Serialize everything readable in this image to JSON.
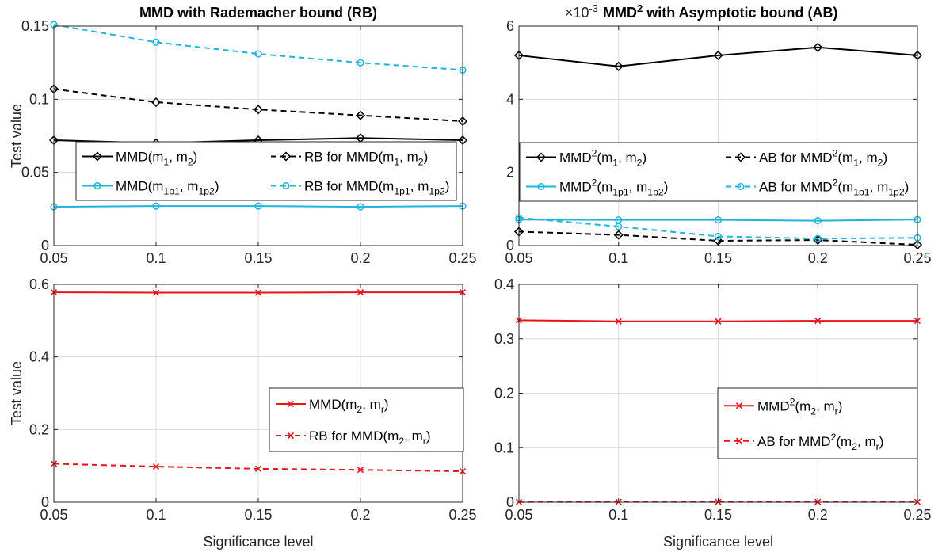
{
  "chart_data": [
    {
      "type": "line",
      "title": "MMD with Rademacher bound (RB)",
      "xlabel": "",
      "ylabel": "Test value",
      "x": [
        0.05,
        0.1,
        0.15,
        0.2,
        0.25
      ],
      "xticks": [
        "0.05",
        "0.1",
        "0.15",
        "0.2",
        "0.25"
      ],
      "xlim": [
        0.05,
        0.25
      ],
      "ylim": [
        0,
        0.15
      ],
      "yticks": [
        "0",
        "0.05",
        "0.1",
        "0.15"
      ],
      "grid": true,
      "legend_position": "middle, two columns",
      "series": [
        {
          "name": "MMD(m1, m2)",
          "name_parts": [
            [
              "MMD(m",
              ""
            ],
            [
              "1",
              "sub"
            ],
            [
              ", m",
              ""
            ],
            [
              "2",
              "sub"
            ],
            [
              ")",
              ""
            ]
          ],
          "color": "#000000",
          "dash": "solid",
          "marker": "diamond",
          "values": [
            0.072,
            0.07,
            0.072,
            0.0735,
            0.072
          ]
        },
        {
          "name": "RB for MMD(m1, m2)",
          "name_parts": [
            [
              "RB for MMD(m",
              ""
            ],
            [
              "1",
              "sub"
            ],
            [
              ", m",
              ""
            ],
            [
              "2",
              "sub"
            ],
            [
              ")",
              ""
            ]
          ],
          "color": "#000000",
          "dash": "dashed",
          "marker": "diamond",
          "values": [
            0.107,
            0.098,
            0.093,
            0.089,
            0.085
          ]
        },
        {
          "name": "MMD(m1p1, m1p2)",
          "name_parts": [
            [
              "MMD(m",
              ""
            ],
            [
              "1p1",
              "sub"
            ],
            [
              ", m",
              ""
            ],
            [
              "1p2",
              "sub"
            ],
            [
              ")",
              ""
            ]
          ],
          "color": "#1eb4dc",
          "dash": "solid",
          "marker": "circle",
          "values": [
            0.0265,
            0.027,
            0.027,
            0.0265,
            0.027
          ]
        },
        {
          "name": "RB for MMD(m1p1, m1p2)",
          "name_parts": [
            [
              "RB for MMD(m",
              ""
            ],
            [
              "1p1",
              "sub"
            ],
            [
              ", m",
              ""
            ],
            [
              "1p2",
              "sub"
            ],
            [
              ")",
              ""
            ]
          ],
          "color": "#1eb4dc",
          "dash": "dashed",
          "marker": "circle",
          "values": [
            0.151,
            0.139,
            0.131,
            0.125,
            0.12
          ]
        }
      ]
    },
    {
      "type": "line",
      "title": "MMD2 with Asymptotic bound (AB)",
      "title_parts": [
        [
          "MMD",
          ""
        ],
        [
          "2",
          "sup"
        ],
        [
          " with Asymptotic bound (AB)",
          ""
        ]
      ],
      "exponent_parts": [
        [
          "×10",
          ""
        ],
        [
          "-3",
          "sup"
        ]
      ],
      "xlabel": "",
      "ylabel": "",
      "x": [
        0.05,
        0.1,
        0.15,
        0.2,
        0.25
      ],
      "xticks": [
        "0.05",
        "0.1",
        "0.15",
        "0.2",
        "0.25"
      ],
      "xlim": [
        0.05,
        0.25
      ],
      "ylim": [
        0,
        6
      ],
      "yticks": [
        "0",
        "2",
        "4",
        "6"
      ],
      "y_scale_note": "values in units of 1e-3",
      "grid": true,
      "legend_position": "middle, two columns",
      "series": [
        {
          "name": "MMD2(m1, m2)",
          "name_parts": [
            [
              "MMD",
              ""
            ],
            [
              "2",
              "sup"
            ],
            [
              "(m",
              ""
            ],
            [
              "1",
              "sub"
            ],
            [
              ", m",
              ""
            ],
            [
              "2",
              "sub"
            ],
            [
              ")",
              ""
            ]
          ],
          "color": "#000000",
          "dash": "solid",
          "marker": "diamond",
          "values": [
            5.2,
            4.9,
            5.2,
            5.42,
            5.2
          ]
        },
        {
          "name": "AB for MMD2(m1, m2)",
          "name_parts": [
            [
              "AB for MMD",
              ""
            ],
            [
              "2",
              "sup"
            ],
            [
              "(m",
              ""
            ],
            [
              "1",
              "sub"
            ],
            [
              ", m",
              ""
            ],
            [
              "2",
              "sub"
            ],
            [
              ")",
              ""
            ]
          ],
          "color": "#000000",
          "dash": "dashed",
          "marker": "diamond",
          "values": [
            0.38,
            0.29,
            0.13,
            0.15,
            0.02
          ]
        },
        {
          "name": "MMD2(m1p1, m1p2)",
          "name_parts": [
            [
              "MMD",
              ""
            ],
            [
              "2",
              "sup"
            ],
            [
              "(m",
              ""
            ],
            [
              "1p1",
              "sub"
            ],
            [
              ", m",
              ""
            ],
            [
              "1p2",
              "sub"
            ],
            [
              ")",
              ""
            ]
          ],
          "color": "#1eb4dc",
          "dash": "solid",
          "marker": "circle",
          "values": [
            0.71,
            0.7,
            0.7,
            0.68,
            0.71
          ]
        },
        {
          "name": "AB for MMD2(m1p1, m1p2)",
          "name_parts": [
            [
              "AB for MMD",
              ""
            ],
            [
              "2",
              "sup"
            ],
            [
              "(m",
              ""
            ],
            [
              "1p1",
              "sub"
            ],
            [
              ", m",
              ""
            ],
            [
              "1p2",
              "sub"
            ],
            [
              ")",
              ""
            ]
          ],
          "color": "#1eb4dc",
          "dash": "dashed",
          "marker": "circle",
          "values": [
            0.76,
            0.52,
            0.25,
            0.19,
            0.21
          ]
        }
      ]
    },
    {
      "type": "line",
      "title": "",
      "xlabel": "Significance level",
      "ylabel": "Test value",
      "x": [
        0.05,
        0.1,
        0.15,
        0.2,
        0.25
      ],
      "xticks": [
        "0.05",
        "0.1",
        "0.15",
        "0.2",
        "0.25"
      ],
      "xlim": [
        0.05,
        0.25
      ],
      "ylim": [
        0,
        0.6
      ],
      "yticks": [
        "0",
        "0.2",
        "0.4",
        "0.6"
      ],
      "grid": true,
      "legend_position": "right",
      "series": [
        {
          "name": "MMD(m2, mr)",
          "name_parts": [
            [
              "MMD(m",
              ""
            ],
            [
              "2",
              "sub"
            ],
            [
              ", m",
              ""
            ],
            [
              "r",
              "sub"
            ],
            [
              ")",
              ""
            ]
          ],
          "color": "#e8141b",
          "dash": "solid",
          "marker": "x",
          "values": [
            0.578,
            0.577,
            0.577,
            0.578,
            0.578
          ]
        },
        {
          "name": "RB for MMD(m2, mr)",
          "name_parts": [
            [
              "RB for MMD(m",
              ""
            ],
            [
              "2",
              "sub"
            ],
            [
              ", m",
              ""
            ],
            [
              "r",
              "sub"
            ],
            [
              ")",
              ""
            ]
          ],
          "color": "#e8141b",
          "dash": "dashed",
          "marker": "x",
          "values": [
            0.106,
            0.098,
            0.092,
            0.089,
            0.085
          ]
        }
      ]
    },
    {
      "type": "line",
      "title": "",
      "xlabel": "Significance level",
      "ylabel": "",
      "x": [
        0.05,
        0.1,
        0.15,
        0.2,
        0.25
      ],
      "xticks": [
        "0.05",
        "0.1",
        "0.15",
        "0.2",
        "0.25"
      ],
      "xlim": [
        0.05,
        0.25
      ],
      "ylim": [
        0,
        0.4
      ],
      "yticks": [
        "0",
        "0.1",
        "0.2",
        "0.3",
        "0.4"
      ],
      "grid": true,
      "legend_position": "right",
      "series": [
        {
          "name": "MMD2(m2, mr)",
          "name_parts": [
            [
              "MMD",
              ""
            ],
            [
              "2",
              "sup"
            ],
            [
              "(m",
              ""
            ],
            [
              "2",
              "sub"
            ],
            [
              ", m",
              ""
            ],
            [
              "r",
              "sub"
            ],
            [
              ")",
              ""
            ]
          ],
          "color": "#e8141b",
          "dash": "solid",
          "marker": "x",
          "values": [
            0.334,
            0.332,
            0.332,
            0.333,
            0.333
          ]
        },
        {
          "name": "AB for MMD2(m2, mr)",
          "name_parts": [
            [
              "AB for MMD",
              ""
            ],
            [
              "2",
              "sup"
            ],
            [
              "(m",
              ""
            ],
            [
              "2",
              "sub"
            ],
            [
              ", m",
              ""
            ],
            [
              "r",
              "sub"
            ],
            [
              ")",
              ""
            ]
          ],
          "color": "#e8141b",
          "dash": "dashed",
          "marker": "x",
          "values": [
            0.0005,
            0.0005,
            0.0005,
            0.0005,
            0.0005
          ]
        }
      ]
    }
  ]
}
